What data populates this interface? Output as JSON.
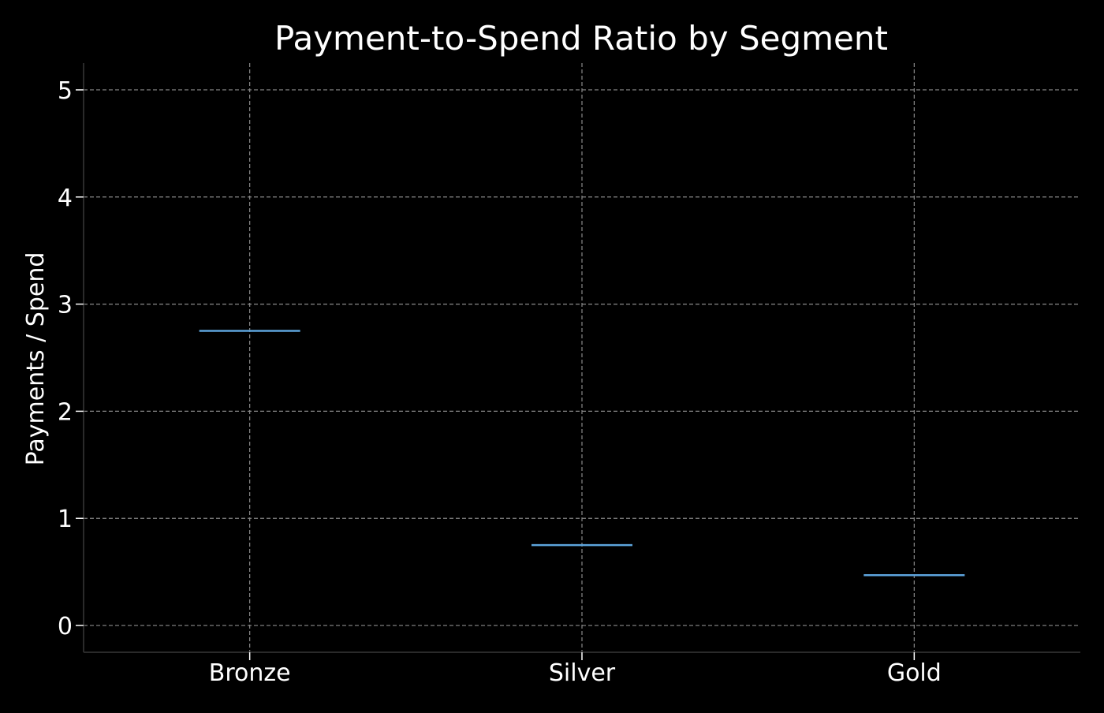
{
  "chart_data": {
    "type": "box",
    "title": "Payment-to-Spend Ratio by Segment",
    "xlabel": "",
    "ylabel": "Payments / Spend",
    "categories": [
      "Bronze",
      "Silver",
      "Gold"
    ],
    "medians": [
      2.75,
      0.75,
      0.47
    ],
    "ylim": [
      -0.25,
      5.25
    ],
    "yticks": [
      0,
      1,
      2,
      3,
      4,
      5
    ],
    "ytick_labels": [
      "0",
      "1",
      "2",
      "3",
      "4",
      "5"
    ],
    "grid": true,
    "grid_style": "dashed",
    "legend": null
  },
  "colors": {
    "background": "#000000",
    "text": "#ffffff",
    "grid": "#8a8a8a",
    "axis": "#2a2a2a",
    "median": "#5da4dc"
  }
}
